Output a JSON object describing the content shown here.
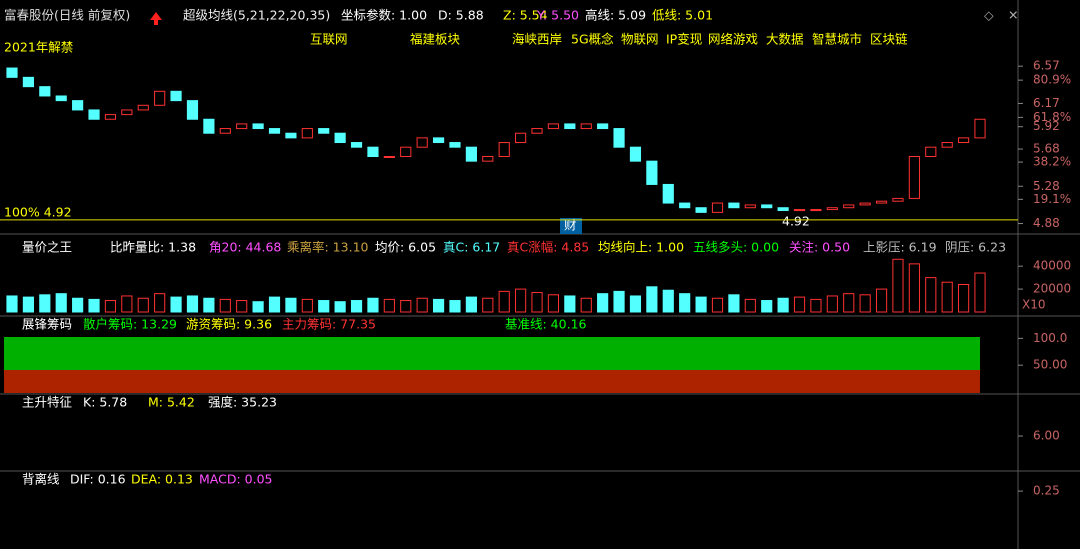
{
  "header": {
    "title": "富春股份(日线 前复权)",
    "indicator": "超级均线(5,21,22,20,35)",
    "params": [
      "坐标参数: 1.00",
      "D: 5.88",
      "Z: 5.54",
      "Y: 5.50",
      "高线: 5.09",
      "低线: 5.01"
    ]
  },
  "concepts": [
    "互联网",
    "福建板块",
    "海峡西岸",
    "5G概念",
    "物联网",
    "IP变现",
    "网络游戏",
    "大数据",
    "智慧城市",
    "区块链"
  ],
  "main": {
    "notes": {
      "unlock": "2021年解禁",
      "level": "100% 4.92",
      "low_mark": "4.92",
      "event": "财"
    },
    "support_price": 4.92,
    "ylim": [
      4.8,
      6.69
    ],
    "yticks": [
      {
        "value": 6.57,
        "label": "6.57"
      },
      {
        "value": 6.17,
        "label": "6.17"
      },
      {
        "value": 5.92,
        "label": "5.92"
      },
      {
        "value": 5.68,
        "label": "5.68"
      },
      {
        "value": 5.28,
        "label": "5.28"
      },
      {
        "value": 4.88,
        "label": "4.88"
      }
    ],
    "fib_levels": [
      {
        "value": 80.9,
        "label": "80.9%",
        "price": 6.42
      },
      {
        "value": 61.8,
        "label": "61.8%",
        "price": 6.02
      },
      {
        "value": 38.2,
        "label": "38.2%",
        "price": 5.54
      },
      {
        "value": 19.1,
        "label": "19.1%",
        "price": 5.14
      }
    ],
    "open": [
      6.55,
      6.45,
      6.35,
      6.25,
      6.2,
      6.1,
      6.0,
      6.05,
      6.1,
      6.15,
      6.3,
      6.2,
      6.0,
      5.85,
      5.9,
      5.95,
      5.9,
      5.85,
      5.8,
      5.9,
      5.85,
      5.75,
      5.7,
      5.6,
      5.6,
      5.7,
      5.8,
      5.75,
      5.7,
      5.55,
      5.6,
      5.75,
      5.85,
      5.9,
      5.95,
      5.9,
      5.95,
      5.9,
      5.7,
      5.55,
      5.3,
      5.1,
      5.05,
      5.0,
      5.1,
      5.05,
      5.08,
      5.05,
      5.02,
      5.03,
      5.03,
      5.05,
      5.08,
      5.1,
      5.12,
      5.15,
      5.6,
      5.7,
      5.75,
      5.8
    ],
    "close": [
      6.45,
      6.35,
      6.25,
      6.2,
      6.1,
      6.0,
      6.05,
      6.1,
      6.15,
      6.3,
      6.2,
      6.0,
      5.85,
      5.9,
      5.95,
      5.9,
      5.85,
      5.8,
      5.9,
      5.85,
      5.75,
      5.7,
      5.6,
      5.6,
      5.7,
      5.8,
      5.75,
      5.7,
      5.55,
      5.6,
      5.75,
      5.85,
      5.9,
      5.95,
      5.9,
      5.95,
      5.9,
      5.7,
      5.55,
      5.3,
      5.1,
      5.05,
      5.0,
      5.1,
      5.05,
      5.08,
      5.05,
      5.02,
      5.03,
      5.03,
      5.05,
      5.08,
      5.1,
      5.12,
      5.15,
      5.6,
      5.7,
      5.75,
      5.8,
      6.0
    ]
  },
  "volume": {
    "title": "量价之王",
    "params": [
      "比昨量比: 1.38",
      "角20: 44.68",
      "乘离率: 13.10",
      "均价: 6.05",
      "真C: 6.17",
      "真C涨幅: 4.85",
      "均线向上: 1.00",
      "五线多头: 0.00",
      "关注: 0.50",
      "上影压: 6.19",
      "阴压: 6.23"
    ],
    "ylim": [
      0,
      48000
    ],
    "yticks": [
      40000,
      20000
    ],
    "unit": "X10",
    "values": [
      14000,
      13000,
      15000,
      16000,
      12000,
      11000,
      10000,
      14000,
      12000,
      16000,
      13000,
      14000,
      12000,
      11000,
      10000,
      9000,
      13000,
      12000,
      11000,
      10000,
      9000,
      10000,
      12000,
      11000,
      10000,
      12000,
      11000,
      10000,
      13000,
      12000,
      18000,
      20000,
      17000,
      15000,
      14000,
      12000,
      16000,
      18000,
      14000,
      22000,
      19000,
      16000,
      13000,
      12000,
      15000,
      11000,
      10000,
      12000,
      13000,
      11000,
      14000,
      16000,
      15000,
      20000,
      46000,
      42000,
      30000,
      26000,
      24000,
      34000
    ]
  },
  "chips": {
    "title": "展锋筹码",
    "params": [
      "散户筹码: 13.29",
      "游资筹码: 9.36",
      "主力筹码: 77.35",
      "基准线: 40.16"
    ],
    "ylim": [
      0,
      110
    ],
    "yticks": [
      {
        "value": 100,
        "label": "100.0"
      },
      {
        "value": 50,
        "label": "50.00"
      }
    ]
  },
  "rise": {
    "title": "主升特征",
    "params": [
      "K: 5.78",
      "M: 5.42",
      "强度: 35.23"
    ],
    "ylim": [
      5.0,
      6.83
    ],
    "yticks": [
      {
        "value": 6,
        "label": "6.00"
      }
    ]
  },
  "macd": {
    "title": "背离线",
    "params": [
      "DIF: 0.16",
      "DEA: 0.13",
      "MACD: 0.05"
    ],
    "ylim": [
      -0.3,
      0.28
    ],
    "yticks": [
      0.25
    ]
  }
}
